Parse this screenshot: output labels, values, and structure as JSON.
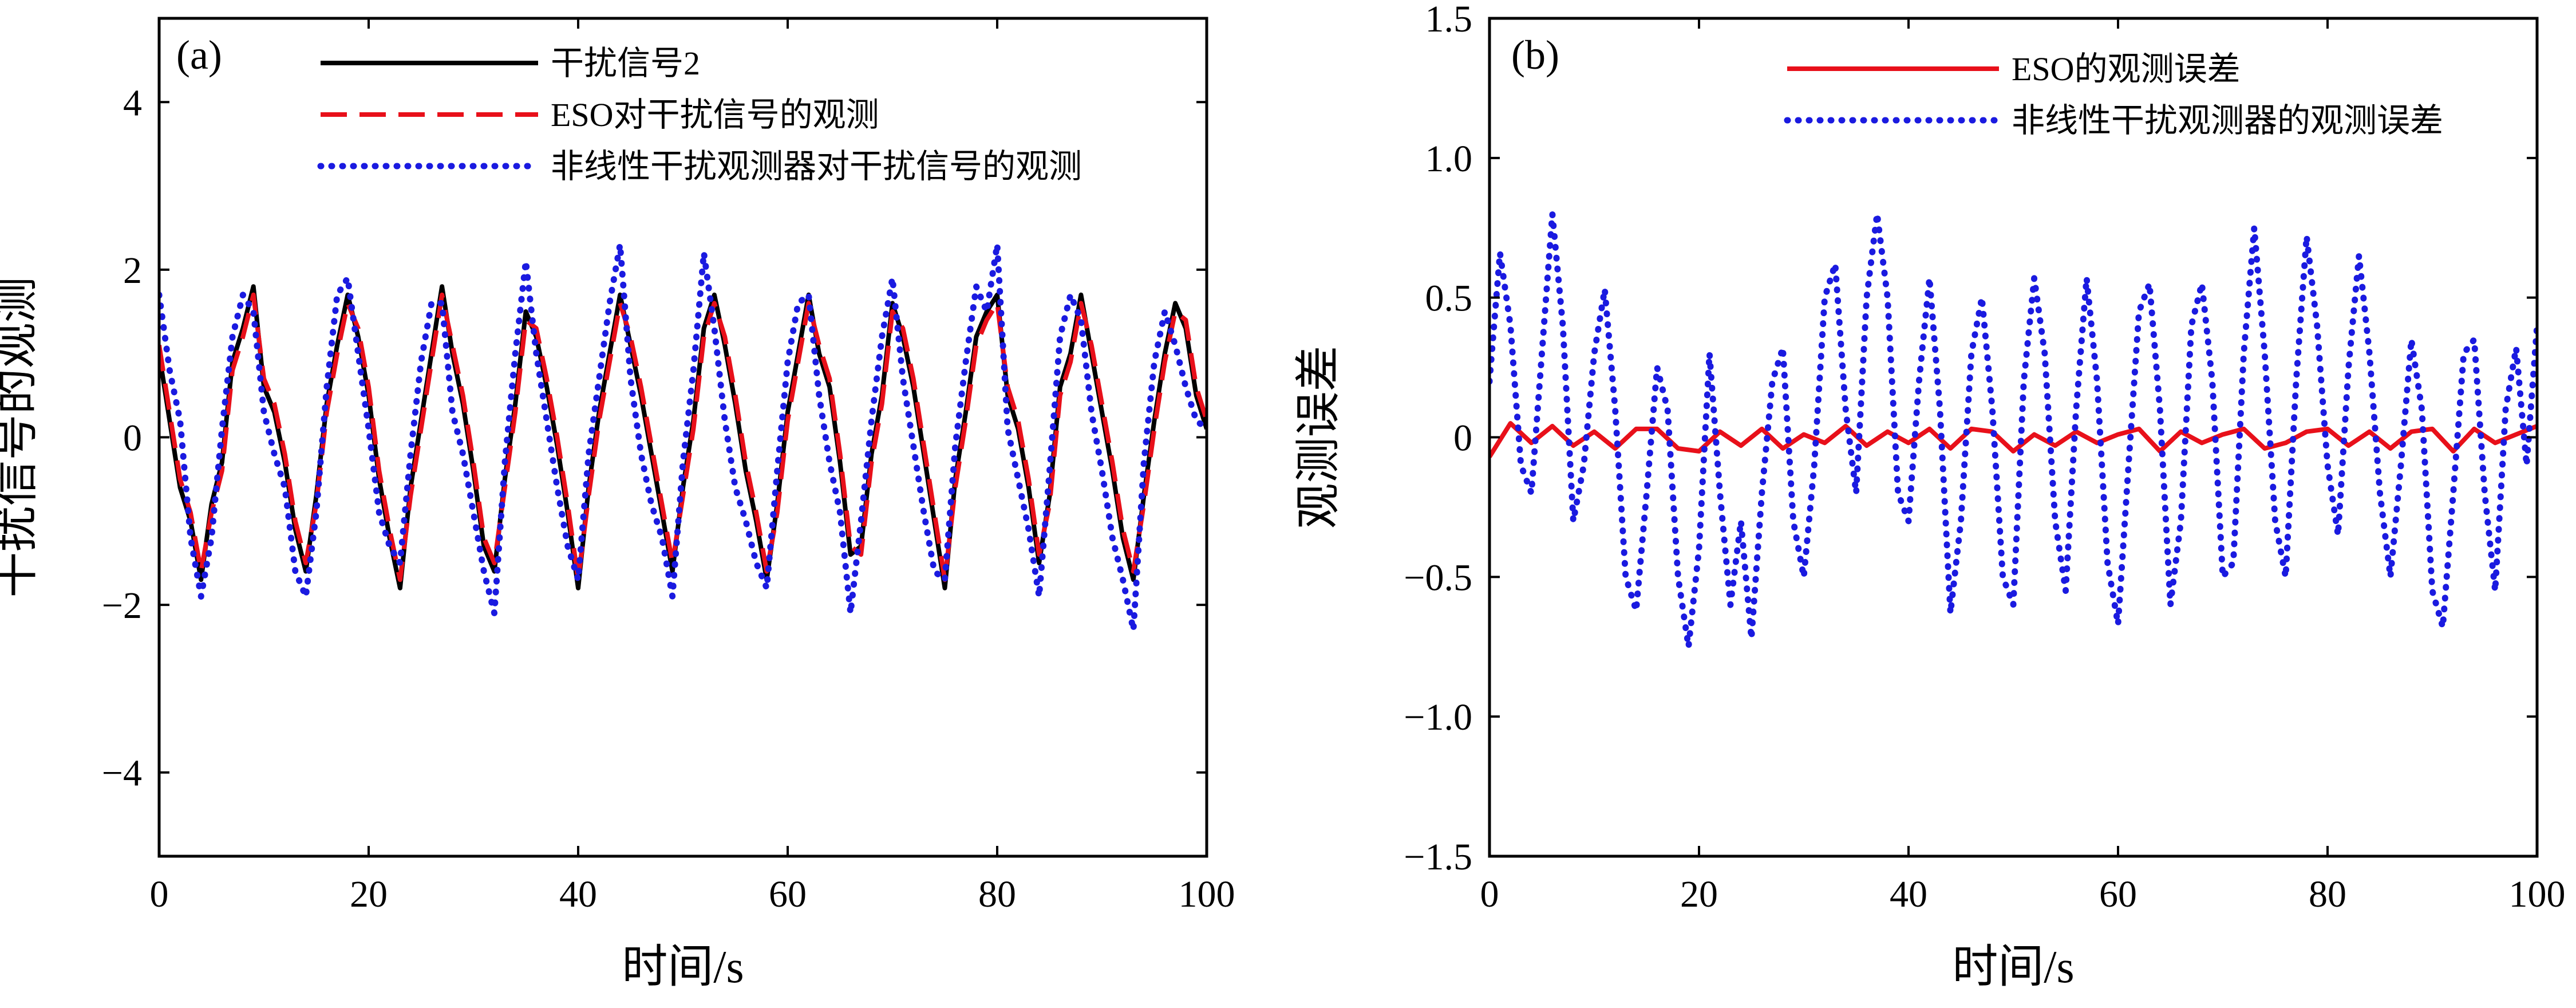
{
  "colors": {
    "black": "#000000",
    "red": "#e8101a",
    "blue": "#1a1ae0"
  },
  "chart_data": [
    {
      "type": "line",
      "panel_label": "(a)",
      "xlabel": "时间/s",
      "ylabel": "干扰信号的观测",
      "xlim": [
        0,
        100
      ],
      "ylim": [
        -5,
        5
      ],
      "xticks": [
        "0",
        "20",
        "40",
        "60",
        "80",
        "100"
      ],
      "yticks": [
        "−4",
        "−2",
        "0",
        "2",
        "4"
      ],
      "grid": false,
      "legend_position": "top-right",
      "series": [
        {
          "name": "干扰信号2",
          "style": "solid",
          "color": "#000000",
          "x": [
            0,
            1,
            2,
            3,
            4,
            5,
            6,
            7,
            8,
            9,
            10,
            11,
            12,
            13,
            14,
            15,
            16,
            17,
            18,
            19,
            20,
            21,
            22,
            23,
            24,
            25,
            26,
            27,
            28,
            29,
            30,
            31,
            32,
            33,
            34,
            35,
            36,
            37,
            38,
            39,
            40,
            41,
            42,
            43,
            44,
            45,
            46,
            47,
            48,
            49,
            50,
            51,
            52,
            53,
            54,
            55,
            56,
            57,
            58,
            59,
            60,
            61,
            62,
            63,
            64,
            65,
            66,
            67,
            68,
            69,
            70,
            71,
            72,
            73,
            74,
            75,
            76,
            77,
            78,
            79,
            80,
            81,
            82,
            83,
            84,
            85,
            86,
            87,
            88,
            89,
            90,
            91,
            92,
            93,
            94,
            95,
            96,
            97,
            98,
            99,
            100
          ],
          "y": [
            1.0,
            0.2,
            -0.6,
            -1.0,
            -1.7,
            -0.8,
            -0.3,
            0.9,
            1.3,
            1.8,
            0.6,
            0.3,
            -0.3,
            -1.1,
            -1.6,
            -0.7,
            0.4,
            1.1,
            1.7,
            1.2,
            0.5,
            -0.5,
            -1.2,
            -1.8,
            -0.6,
            0.2,
            1.0,
            1.8,
            1.0,
            0.4,
            -0.4,
            -1.3,
            -1.6,
            -0.5,
            0.4,
            1.5,
            1.2,
            0.6,
            -0.1,
            -0.9,
            -1.8,
            -0.6,
            0.3,
            1.0,
            1.7,
            1.1,
            0.5,
            -0.2,
            -0.9,
            -1.6,
            -0.6,
            0.2,
            1.3,
            1.7,
            1.1,
            0.4,
            -0.4,
            -1.0,
            -1.7,
            -0.8,
            0.3,
            1.0,
            1.7,
            1.0,
            0.6,
            -0.3,
            -1.4,
            -1.3,
            -0.2,
            0.5,
            1.6,
            1.2,
            0.6,
            -0.2,
            -1.0,
            -1.8,
            -0.5,
            0.3,
            1.2,
            1.5,
            1.7,
            0.5,
            0.1,
            -0.6,
            -1.5,
            -0.7,
            0.6,
            1.0,
            1.7,
            1.0,
            0.3,
            -0.4,
            -1.2,
            -1.7,
            -0.7,
            0.2,
            1.0,
            1.6,
            1.3,
            0.5,
            0.1
          ]
        },
        {
          "name": "ESO对干扰信号的观测",
          "style": "dashed",
          "color": "#e8101a",
          "x": [
            0,
            1,
            2,
            3,
            4,
            5,
            6,
            7,
            8,
            9,
            10,
            11,
            12,
            13,
            14,
            15,
            16,
            17,
            18,
            19,
            20,
            21,
            22,
            23,
            24,
            25,
            26,
            27,
            28,
            29,
            30,
            31,
            32,
            33,
            34,
            35,
            36,
            37,
            38,
            39,
            40,
            41,
            42,
            43,
            44,
            45,
            46,
            47,
            48,
            49,
            50,
            51,
            52,
            53,
            54,
            55,
            56,
            57,
            58,
            59,
            60,
            61,
            62,
            63,
            64,
            65,
            66,
            67,
            68,
            69,
            70,
            71,
            72,
            73,
            74,
            75,
            76,
            77,
            78,
            79,
            80,
            81,
            82,
            83,
            84,
            85,
            86,
            87,
            88,
            89,
            90,
            91,
            92,
            93,
            94,
            95,
            96,
            97,
            98,
            99,
            100
          ],
          "y": [
            1.1,
            0.3,
            -0.5,
            -0.9,
            -1.6,
            -0.9,
            -0.4,
            0.8,
            1.2,
            1.7,
            0.7,
            0.4,
            -0.2,
            -1.0,
            -1.5,
            -0.8,
            0.3,
            1.0,
            1.6,
            1.3,
            0.6,
            -0.4,
            -1.1,
            -1.7,
            -0.7,
            0.1,
            0.9,
            1.7,
            1.1,
            0.5,
            -0.3,
            -1.2,
            -1.5,
            -0.6,
            0.3,
            1.4,
            1.3,
            0.7,
            0.0,
            -0.8,
            -1.7,
            -0.7,
            0.2,
            0.9,
            1.6,
            1.2,
            0.6,
            -0.1,
            -0.8,
            -1.5,
            -0.7,
            0.1,
            1.2,
            1.6,
            1.2,
            0.5,
            -0.3,
            -0.9,
            -1.6,
            -0.9,
            0.2,
            0.9,
            1.6,
            1.1,
            0.7,
            -0.2,
            -1.3,
            -1.4,
            -0.3,
            0.4,
            1.5,
            1.3,
            0.7,
            -0.1,
            -0.9,
            -1.7,
            -0.6,
            0.2,
            1.1,
            1.4,
            1.6,
            0.6,
            0.2,
            -0.5,
            -1.4,
            -0.8,
            0.5,
            0.9,
            1.6,
            1.1,
            0.4,
            -0.3,
            -1.1,
            -1.6,
            -0.8,
            0.1,
            0.9,
            1.5,
            1.4,
            0.6,
            0.2
          ]
        },
        {
          "name": "非线性干扰观测器对干扰信号的观测",
          "style": "dotted",
          "color": "#1a1ae0",
          "x": [
            0,
            1,
            2,
            3,
            4,
            5,
            6,
            7,
            8,
            9,
            10,
            11,
            12,
            13,
            14,
            15,
            16,
            17,
            18,
            19,
            20,
            21,
            22,
            23,
            24,
            25,
            26,
            27,
            28,
            29,
            30,
            31,
            32,
            33,
            34,
            35,
            36,
            37,
            38,
            39,
            40,
            41,
            42,
            43,
            44,
            45,
            46,
            47,
            48,
            49,
            50,
            51,
            52,
            53,
            54,
            55,
            56,
            57,
            58,
            59,
            60,
            61,
            62,
            63,
            64,
            65,
            66,
            67,
            68,
            69,
            70,
            71,
            72,
            73,
            74,
            75,
            76,
            77,
            78,
            79,
            80,
            81,
            82,
            83,
            84,
            85,
            86,
            87,
            88,
            89,
            90,
            91,
            92,
            93,
            94,
            95,
            96,
            97,
            98,
            99,
            100
          ],
          "y": [
            1.7,
            0.8,
            0.2,
            -1.2,
            -1.9,
            -1.2,
            0.1,
            1.2,
            1.7,
            1.5,
            0.3,
            -0.2,
            -0.6,
            -1.6,
            -1.9,
            -0.9,
            0.6,
            1.7,
            1.9,
            1.0,
            0.1,
            -0.9,
            -1.3,
            -1.5,
            -0.2,
            0.9,
            1.6,
            1.6,
            0.3,
            -0.2,
            -0.9,
            -1.6,
            -2.1,
            -0.3,
            1.0,
            2.1,
            1.0,
            0.2,
            -0.6,
            -1.3,
            -1.7,
            -0.2,
            0.7,
            1.6,
            2.3,
            0.7,
            -0.2,
            -0.8,
            -1.2,
            -1.9,
            -0.3,
            0.8,
            2.2,
            1.3,
            0.2,
            -0.6,
            -1.0,
            -1.5,
            -1.8,
            -0.4,
            0.9,
            1.6,
            1.7,
            0.5,
            -0.3,
            -0.9,
            -2.1,
            -1.0,
            0.2,
            1.2,
            1.9,
            0.7,
            -0.1,
            -0.9,
            -1.6,
            -1.7,
            -0.1,
            0.9,
            1.8,
            1.5,
            2.3,
            0.1,
            -0.5,
            -1.1,
            -1.9,
            -0.4,
            1.2,
            1.7,
            1.4,
            0.3,
            -0.4,
            -1.2,
            -1.7,
            -2.3,
            -0.3,
            0.9,
            1.5,
            1.1,
            0.6,
            0.2,
            0.1
          ]
        }
      ]
    },
    {
      "type": "line",
      "panel_label": "(b)",
      "xlabel": "时间/s",
      "ylabel": "观测误差",
      "xlim": [
        0,
        100
      ],
      "ylim": [
        -1.5,
        1.5
      ],
      "xticks": [
        "0",
        "20",
        "40",
        "60",
        "80",
        "100"
      ],
      "yticks": [
        "−1.5",
        "−1.0",
        "−0.5",
        "0",
        "0.5",
        "1.0",
        "1.5"
      ],
      "grid": false,
      "legend_position": "top-right",
      "series": [
        {
          "name": "ESO的观测误差",
          "style": "solid",
          "color": "#e8101a",
          "x": [
            0,
            2,
            4,
            6,
            8,
            10,
            12,
            14,
            16,
            18,
            20,
            22,
            24,
            26,
            28,
            30,
            32,
            34,
            36,
            38,
            40,
            42,
            44,
            46,
            48,
            50,
            52,
            54,
            56,
            58,
            60,
            62,
            64,
            66,
            68,
            70,
            72,
            74,
            76,
            78,
            80,
            82,
            84,
            86,
            88,
            90,
            92,
            94,
            96,
            98,
            100
          ],
          "y": [
            -0.07,
            0.05,
            -0.02,
            0.04,
            -0.03,
            0.02,
            -0.04,
            0.03,
            0.03,
            -0.04,
            -0.05,
            0.02,
            -0.03,
            0.03,
            -0.04,
            0.01,
            -0.02,
            0.04,
            -0.03,
            0.02,
            -0.02,
            0.03,
            -0.04,
            0.03,
            0.02,
            -0.05,
            0.01,
            -0.03,
            0.02,
            -0.02,
            0.01,
            0.03,
            -0.05,
            0.02,
            -0.02,
            0.01,
            0.03,
            -0.04,
            -0.02,
            0.02,
            0.03,
            -0.03,
            0.02,
            -0.04,
            0.02,
            0.03,
            -0.05,
            0.03,
            -0.02,
            0.01,
            0.04
          ]
        },
        {
          "name": "非线性干扰观测器的观测误差",
          "style": "dotted",
          "color": "#1a1ae0",
          "x": [
            0,
            1,
            2,
            3,
            4,
            5,
            6,
            7,
            8,
            9,
            10,
            11,
            12,
            13,
            14,
            15,
            16,
            17,
            18,
            19,
            20,
            21,
            22,
            23,
            24,
            25,
            26,
            27,
            28,
            29,
            30,
            31,
            32,
            33,
            34,
            35,
            36,
            37,
            38,
            39,
            40,
            41,
            42,
            43,
            44,
            45,
            46,
            47,
            48,
            49,
            50,
            51,
            52,
            53,
            54,
            55,
            56,
            57,
            58,
            59,
            60,
            61,
            62,
            63,
            64,
            65,
            66,
            67,
            68,
            69,
            70,
            71,
            72,
            73,
            74,
            75,
            76,
            77,
            78,
            79,
            80,
            81,
            82,
            83,
            84,
            85,
            86,
            87,
            88,
            89,
            90,
            91,
            92,
            93,
            94,
            95,
            96,
            97,
            98,
            99,
            100
          ],
          "y": [
            0.2,
            0.66,
            0.4,
            -0.1,
            -0.2,
            0.3,
            0.8,
            0.4,
            -0.3,
            -0.1,
            0.3,
            0.53,
            0.1,
            -0.5,
            -0.62,
            -0.2,
            0.25,
            0.1,
            -0.5,
            -0.75,
            -0.4,
            0.3,
            -0.2,
            -0.6,
            -0.3,
            -0.72,
            -0.2,
            0.2,
            0.32,
            -0.3,
            -0.5,
            -0.1,
            0.5,
            0.62,
            0.1,
            -0.2,
            0.5,
            0.8,
            0.5,
            -0.2,
            -0.3,
            0.2,
            0.57,
            0.1,
            -0.63,
            -0.3,
            0.3,
            0.5,
            0.1,
            -0.5,
            -0.6,
            0.2,
            0.57,
            0.3,
            -0.3,
            -0.55,
            0.1,
            0.57,
            0.2,
            -0.45,
            -0.67,
            -0.1,
            0.45,
            0.55,
            0.1,
            -0.6,
            -0.3,
            0.4,
            0.55,
            0.2,
            -0.5,
            -0.45,
            0.3,
            0.75,
            0.3,
            -0.3,
            -0.5,
            0.2,
            0.72,
            0.4,
            -0.1,
            -0.35,
            0.25,
            0.65,
            0.3,
            -0.2,
            -0.5,
            -0.1,
            0.35,
            0.1,
            -0.55,
            -0.68,
            -0.2,
            0.3,
            0.35,
            -0.2,
            -0.55,
            0.1,
            0.32,
            -0.1,
            0.4
          ]
        }
      ]
    }
  ]
}
